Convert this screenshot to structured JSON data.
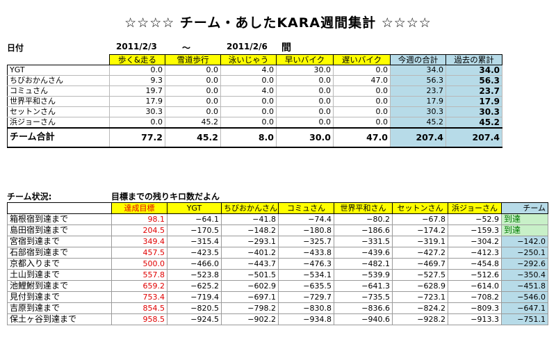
{
  "title": "☆☆☆☆  チーム・あしたKARA週間集計  ☆☆☆☆",
  "date_label": "日付",
  "date_from": "2011/2/3",
  "date_sep": "～",
  "date_to": "2011/2/6",
  "date_suffix": "間",
  "weekly": {
    "headers": [
      "",
      "歩く&走る",
      "雪道歩行",
      "泳いじゃう",
      "早いバイク",
      "遅いバイク",
      "今週の合計",
      "過去の累計"
    ],
    "rows": [
      {
        "name": "YGT",
        "values": [
          "0.0",
          "0.0",
          "4.0",
          "30.0",
          "0.0",
          "34.0",
          "34.0"
        ]
      },
      {
        "name": "ちびおかんさん",
        "values": [
          "9.3",
          "0.0",
          "0.0",
          "0.0",
          "47.0",
          "56.3",
          "56.3"
        ]
      },
      {
        "name": "コミュさん",
        "values": [
          "19.7",
          "0.0",
          "4.0",
          "0.0",
          "0.0",
          "23.7",
          "23.7"
        ]
      },
      {
        "name": "世界平和さん",
        "values": [
          "17.9",
          "0.0",
          "0.0",
          "0.0",
          "0.0",
          "17.9",
          "17.9"
        ]
      },
      {
        "name": "セットンさん",
        "values": [
          "30.3",
          "0.0",
          "0.0",
          "0.0",
          "0.0",
          "30.3",
          "30.3"
        ]
      },
      {
        "name": "浜ジョーさん",
        "values": [
          "0.0",
          "45.2",
          "0.0",
          "0.0",
          "0.0",
          "45.2",
          "45.2"
        ]
      }
    ],
    "total": {
      "name": "チーム合計",
      "values": [
        "77.2",
        "45.2",
        "8.0",
        "30.0",
        "47.0",
        "207.4",
        "207.4"
      ]
    }
  },
  "status_label": "チーム状況:",
  "status_sub": "目標までの残りキロ数だよん",
  "remaining": {
    "headers": [
      "",
      "達成目標",
      "YGT",
      "ちびおかんさん",
      "コミュさん",
      "世界平和さん",
      "セットンさん",
      "浜ジョーさん",
      "チーム"
    ],
    "rows": [
      {
        "name": "箱根宿到達まで",
        "target": "98.1",
        "values": [
          "−64.1",
          "−41.8",
          "−74.4",
          "−80.2",
          "−67.8",
          "−52.9"
        ],
        "team": "到達"
      },
      {
        "name": "島田宿到達まで",
        "target": "204.5",
        "values": [
          "−170.5",
          "−148.2",
          "−180.8",
          "−186.6",
          "−174.2",
          "−159.3"
        ],
        "team": "到達"
      },
      {
        "name": "宮宿到達まで",
        "target": "349.4",
        "values": [
          "−315.4",
          "−293.1",
          "−325.7",
          "−331.5",
          "−319.1",
          "−304.2"
        ],
        "team": "−142.0"
      },
      {
        "name": "石部宿到達まで",
        "target": "457.5",
        "values": [
          "−423.5",
          "−401.2",
          "−433.8",
          "−439.6",
          "−427.2",
          "−412.3"
        ],
        "team": "−250.1"
      },
      {
        "name": "京都入りまで",
        "target": "500.0",
        "values": [
          "−466.0",
          "−443.7",
          "−476.3",
          "−482.1",
          "−469.7",
          "−454.8"
        ],
        "team": "−292.6"
      },
      {
        "name": "土山到達まで",
        "target": "557.8",
        "values": [
          "−523.8",
          "−501.5",
          "−534.1",
          "−539.9",
          "−527.5",
          "−512.6"
        ],
        "team": "−350.4"
      },
      {
        "name": "池鯉鮒到達まで",
        "target": "659.2",
        "values": [
          "−625.2",
          "−602.9",
          "−635.5",
          "−641.3",
          "−628.9",
          "−614.0"
        ],
        "team": "−451.8"
      },
      {
        "name": "見付到達まで",
        "target": "753.4",
        "values": [
          "−719.4",
          "−697.1",
          "−729.7",
          "−735.5",
          "−723.1",
          "−708.2"
        ],
        "team": "−546.0"
      },
      {
        "name": "吉原到達まで",
        "target": "854.5",
        "values": [
          "−820.5",
          "−798.2",
          "−830.8",
          "−836.6",
          "−824.2",
          "−809.3"
        ],
        "team": "−647.1"
      },
      {
        "name": "保土ヶ谷到達まで",
        "target": "958.5",
        "values": [
          "−924.5",
          "−902.2",
          "−934.8",
          "−940.6",
          "−928.2",
          "−913.3"
        ],
        "team": "−751.1"
      }
    ]
  },
  "colors": {
    "header_yellow": "#ffff00",
    "total_blue": "#b7dbe8",
    "target_red": "#e00000",
    "reached_green": "#c8f0c8"
  }
}
